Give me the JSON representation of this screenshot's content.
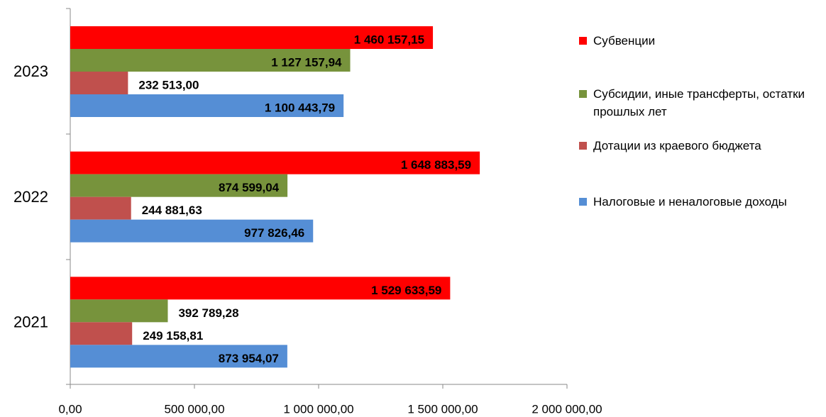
{
  "chart_data": {
    "type": "bar",
    "orientation": "horizontal",
    "categories": [
      "2021",
      "2022",
      "2023"
    ],
    "series": [
      {
        "name": "Субвенции",
        "color": "#ff0000",
        "values": [
          1529633.59,
          1648883.59,
          1460157.15
        ],
        "value_labels": [
          "1 529 633,59",
          "1 648 883,59",
          "1 460 157,15"
        ]
      },
      {
        "name": "Субсидии, иные трансферты, остатки прошлых лет",
        "color": "#77933c",
        "values": [
          392789.28,
          874599.04,
          1127157.94
        ],
        "value_labels": [
          "392 789,28",
          "874 599,04",
          "1 127 157,94"
        ]
      },
      {
        "name": "Дотации из краевого бюджета",
        "color": "#c0504d",
        "values": [
          249158.81,
          244881.63,
          232513.0
        ],
        "value_labels": [
          "249 158,81",
          "244 881,63",
          "232 513,00"
        ]
      },
      {
        "name": "Налоговые и неналоговые доходы",
        "color": "#558ed5",
        "values": [
          873954.07,
          977826.46,
          1100443.79
        ],
        "value_labels": [
          "873 954,07",
          "977 826,46",
          "1 100 443,79"
        ]
      }
    ],
    "xlim": [
      0,
      2000000
    ],
    "xticks": [
      {
        "value": 0,
        "label": "0,00"
      },
      {
        "value": 500000,
        "label": "500 000,00"
      },
      {
        "value": 1000000,
        "label": "1 000 000,00"
      },
      {
        "value": 1500000,
        "label": "1 500 000,00"
      },
      {
        "value": 2000000,
        "label": "2 000 000,00"
      }
    ],
    "legend": "right"
  }
}
